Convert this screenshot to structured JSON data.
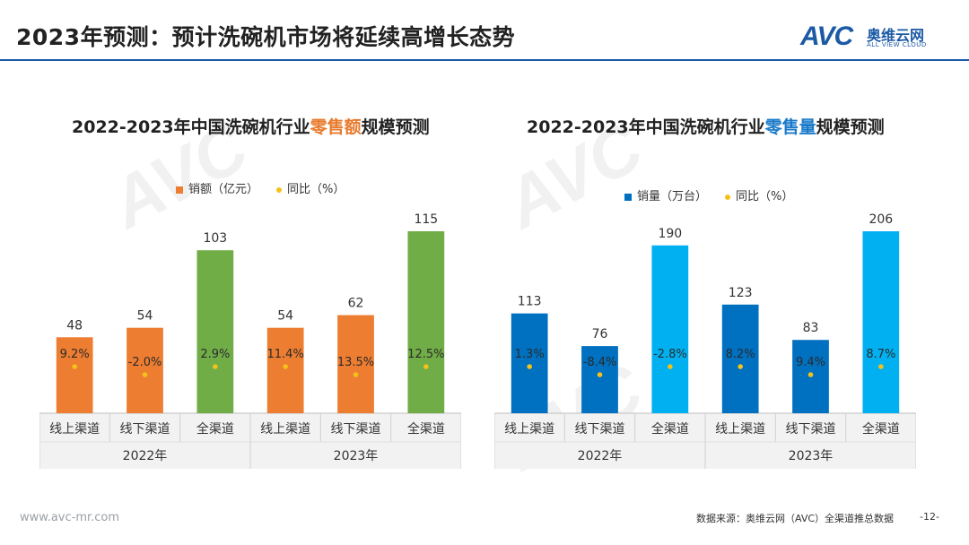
{
  "header": {
    "title": "2023年预测：预计洗碗机市场将延续高增长态势",
    "logo_avc": "AVC",
    "logo_cn": "奥维云网",
    "logo_en": "ALL VIEW CLOUD"
  },
  "colors": {
    "accent": "#1c5aa6",
    "orange": "#ed7d31",
    "green": "#70ad47",
    "blue": "#0070c0",
    "light_blue": "#00b0f0",
    "dot": "#f3c21a"
  },
  "chart_data": [
    {
      "type": "bar",
      "title_prefix": "2022-2023年中国洗碗机行业",
      "title_highlight": "零售额",
      "title_suffix": "规模预测",
      "legend_bar": "销额（亿元）",
      "legend_dot": "同比（%）",
      "categories": [
        "线上渠道",
        "线下渠道",
        "全渠道",
        "线上渠道",
        "线下渠道",
        "全渠道"
      ],
      "groups": [
        "2022年",
        "2023年"
      ],
      "values": [
        48,
        54,
        103,
        54,
        62,
        115
      ],
      "value_labels": [
        "48",
        "54",
        "103",
        "54",
        "62",
        "115"
      ],
      "yoy_labels": [
        "9.2%",
        "-2.0%",
        "2.9%",
        "11.4%",
        "13.5%",
        "12.5%"
      ],
      "yoy_values": [
        9.2,
        -2.0,
        2.9,
        11.4,
        13.5,
        12.5
      ],
      "bar_colors": [
        "#ed7d31",
        "#ed7d31",
        "#70ad47",
        "#ed7d31",
        "#ed7d31",
        "#70ad47"
      ],
      "ylim": [
        0,
        115
      ]
    },
    {
      "type": "bar",
      "title_prefix": "2022-2023年中国洗碗机行业",
      "title_highlight": "零售量",
      "title_suffix": "规模预测",
      "legend_bar": "销量（万台）",
      "legend_dot": "同比（%）",
      "categories": [
        "线上渠道",
        "线下渠道",
        "全渠道",
        "线上渠道",
        "线下渠道",
        "全渠道"
      ],
      "groups": [
        "2022年",
        "2023年"
      ],
      "values": [
        113,
        76,
        190,
        123,
        83,
        206
      ],
      "value_labels": [
        "113",
        "76",
        "190",
        "123",
        "83",
        "206"
      ],
      "yoy_labels": [
        "1.3%",
        "-8.4%",
        "-2.8%",
        "8.2%",
        "9.4%",
        "8.7%"
      ],
      "yoy_values": [
        1.3,
        -8.4,
        -2.8,
        8.2,
        9.4,
        8.7
      ],
      "bar_colors": [
        "#0070c0",
        "#0070c0",
        "#00b0f0",
        "#0070c0",
        "#0070c0",
        "#00b0f0"
      ],
      "ylim": [
        0,
        206
      ]
    }
  ],
  "footer": {
    "url": "www.avc-mr.com",
    "source": "数据来源：奥维云网（AVC）全渠道推总数据",
    "page": "-12-"
  }
}
